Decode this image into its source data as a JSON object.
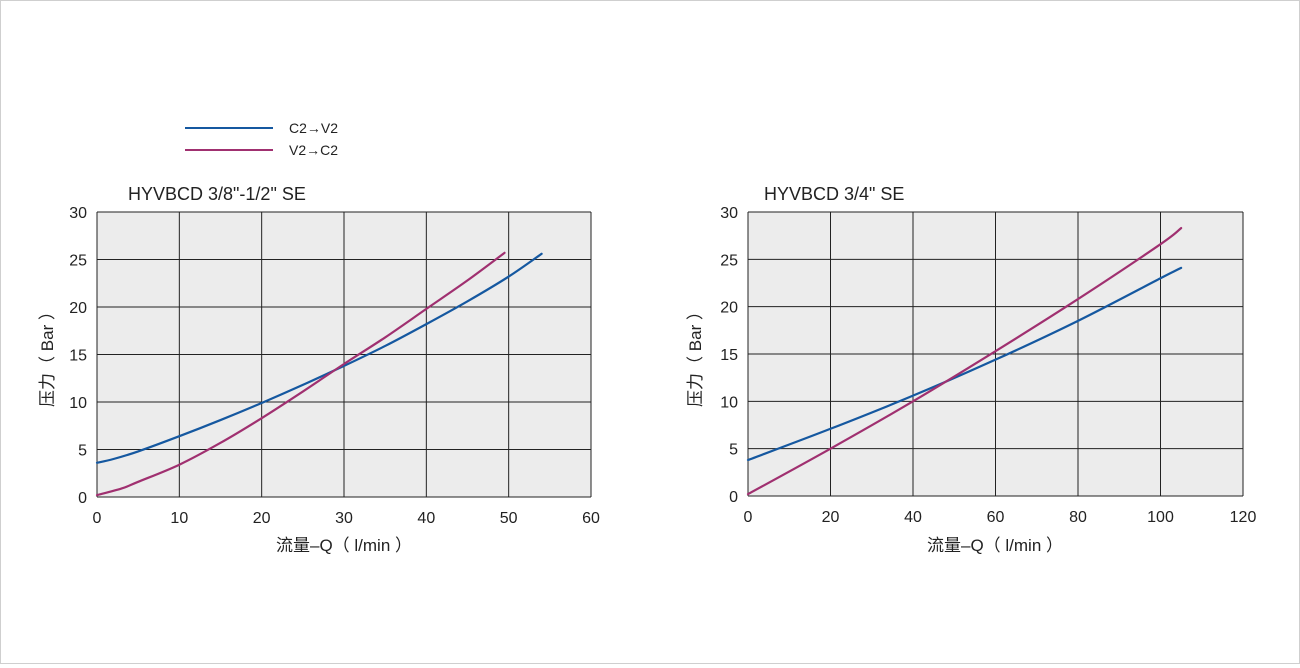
{
  "legend": [
    {
      "label": "C2→V2",
      "color": "#1558a0"
    },
    {
      "label": "V2→C2",
      "color": "#a03070"
    }
  ],
  "colors": {
    "plot_bg": "#ececec",
    "grid": "#222222"
  },
  "chart_data": [
    {
      "type": "line",
      "title": "HYVBCD 3/8\"-1/2\" SE",
      "xlabel": "流量–Q（ l/min ）",
      "ylabel": "压力（ Bar ）",
      "xlim": [
        0,
        60
      ],
      "ylim": [
        0,
        30
      ],
      "xticks": [
        0,
        10,
        20,
        30,
        40,
        50,
        60
      ],
      "yticks": [
        0,
        5,
        10,
        15,
        20,
        25,
        30
      ],
      "grid": true,
      "series": [
        {
          "name": "C2→V2",
          "color": "#1558a0",
          "x": [
            0,
            2,
            5,
            10,
            15,
            20,
            25,
            30,
            35,
            40,
            45,
            50,
            54
          ],
          "y": [
            3.6,
            4.0,
            4.8,
            6.4,
            8.1,
            9.9,
            11.8,
            13.8,
            15.9,
            18.2,
            20.6,
            23.2,
            25.6
          ]
        },
        {
          "name": "V2→C2",
          "color": "#a03070",
          "x": [
            0,
            3,
            5,
            10,
            15,
            20,
            25,
            30,
            35,
            40,
            45,
            49.5
          ],
          "y": [
            0.2,
            0.9,
            1.6,
            3.4,
            5.7,
            8.3,
            11.1,
            14.0,
            16.8,
            19.8,
            22.8,
            25.7
          ]
        }
      ]
    },
    {
      "type": "line",
      "title": "HYVBCD 3/4\" SE",
      "xlabel": "流量–Q（ l/min ）",
      "ylabel": "压力（ Bar ）",
      "xlim": [
        0,
        120
      ],
      "ylim": [
        0,
        30
      ],
      "xticks": [
        0,
        20,
        40,
        60,
        80,
        100,
        120
      ],
      "yticks": [
        0,
        5,
        10,
        15,
        20,
        25,
        30
      ],
      "grid": true,
      "series": [
        {
          "name": "C2→V2",
          "color": "#1558a0",
          "x": [
            0,
            20,
            40,
            60,
            80,
            100,
            105
          ],
          "y": [
            3.8,
            7.1,
            10.6,
            14.4,
            18.5,
            23.0,
            24.1
          ]
        },
        {
          "name": "V2→C2",
          "color": "#a03070",
          "x": [
            0,
            20,
            40,
            60,
            80,
            100,
            105
          ],
          "y": [
            0.2,
            5.0,
            10.0,
            15.3,
            20.8,
            26.6,
            28.3
          ]
        }
      ]
    }
  ]
}
